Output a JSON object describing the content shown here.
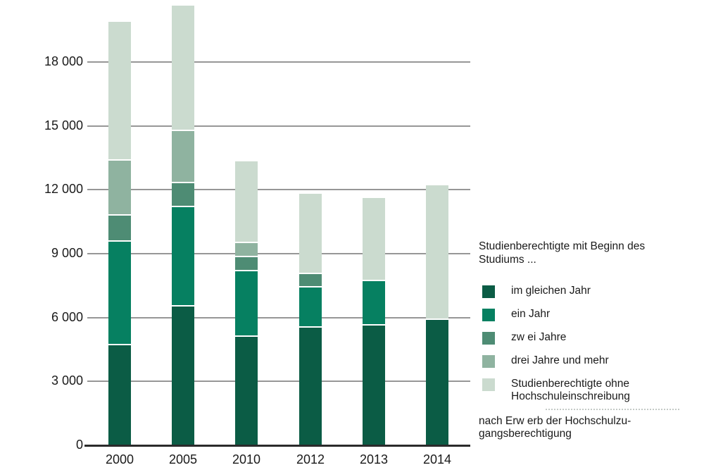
{
  "chart_data": {
    "type": "bar",
    "stacked": true,
    "title": "",
    "xlabel": "",
    "ylabel": "",
    "categories": [
      "2000",
      "2005",
      "2010",
      "2012",
      "2013",
      "2014"
    ],
    "series": [
      {
        "name": "im gleichen Jahr",
        "color": "#0b5c45",
        "values": [
          4700,
          6520,
          5100,
          5530,
          5630,
          5900
        ]
      },
      {
        "name": "ein Jahr",
        "color": "#068061",
        "values": [
          4860,
          4660,
          3070,
          1880,
          2080,
          0
        ]
      },
      {
        "name": "zw ei Jahre",
        "color": "#4e8c74",
        "values": [
          1230,
          1130,
          670,
          630,
          0,
          0
        ]
      },
      {
        "name": "drei Jahre und mehr",
        "color": "#8fb3a0",
        "values": [
          2580,
          2450,
          660,
          0,
          0,
          0
        ]
      },
      {
        "name": "Studienberechtigte ohne Hochschuleinschreibung",
        "color": "#cbdbcf",
        "values": [
          6530,
          5890,
          3840,
          3760,
          3890,
          6300
        ]
      }
    ],
    "totals": [
      19900,
      20650,
      13340,
      11800,
      11600,
      12200
    ],
    "y_ticks": [
      0,
      3000,
      6000,
      9000,
      12000,
      15000,
      18000
    ],
    "y_tick_labels": [
      "0",
      "3 000",
      "6 000",
      "9 000",
      "12 000",
      "15 000",
      "18 000"
    ],
    "ylim": [
      0,
      21000
    ],
    "grid": true,
    "legend_position": "right"
  },
  "legend": {
    "title": "Studienberechtigte mit Beginn des Studiums ...",
    "items": [
      {
        "label": "im gleichen Jahr",
        "color": "#0b5c45"
      },
      {
        "label": "ein Jahr",
        "color": "#068061"
      },
      {
        "label": "zw ei Jahre",
        "color": "#4e8c74"
      },
      {
        "label": "drei Jahre und mehr",
        "color": "#8fb3a0"
      },
      {
        "label": "Studienberechtigte ohne Hochschuleinschreibung",
        "color": "#cbdbcf"
      }
    ],
    "footnote": "nach Erw erb der Hochschulzu-gangsberechtigung"
  },
  "colors": {
    "gridline": "#979797",
    "axis": "#2b2b2b",
    "text": "#1a1a1a",
    "background": "#ffffff"
  }
}
